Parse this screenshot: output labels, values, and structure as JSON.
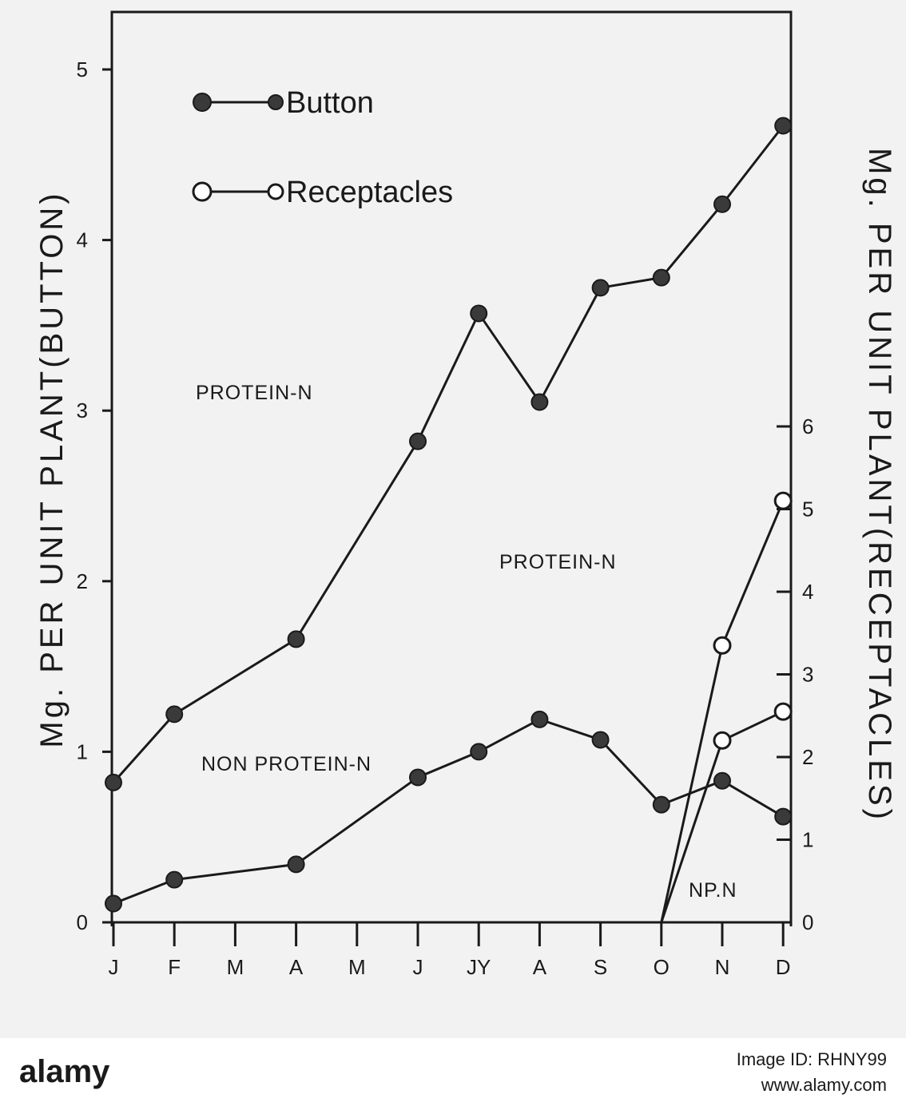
{
  "chart_data": {
    "type": "line",
    "categories": [
      "J",
      "F",
      "M",
      "A",
      "M",
      "J",
      "JY",
      "A",
      "S",
      "O",
      "N",
      "D"
    ],
    "left_axis": {
      "label": "Mg. PER UNIT PLANT(BUTTON)",
      "ylim": [
        0,
        5
      ],
      "ticks": [
        "0",
        "1",
        "2",
        "3",
        "4",
        "5"
      ]
    },
    "right_axis": {
      "label": "Mg. PER UNIT PLANT(RECEPTACLES)",
      "ylim": [
        0,
        6
      ],
      "ticks": [
        "0",
        "1",
        "2",
        "3",
        "4",
        "5",
        "6"
      ]
    },
    "series": [
      {
        "name": "Button",
        "marker": "filled",
        "axis": "left",
        "subset": "protein-n",
        "x": [
          "J",
          "F",
          "A",
          "J",
          "JY",
          "A",
          "S",
          "O",
          "N",
          "D"
        ],
        "values": [
          0.82,
          1.22,
          1.66,
          2.82,
          3.57,
          3.05,
          3.72,
          3.78,
          4.21,
          4.67
        ]
      },
      {
        "name": "Button",
        "marker": "filled",
        "axis": "left",
        "subset": "non-protein-n",
        "x": [
          "J",
          "F",
          "A",
          "J",
          "JY",
          "A",
          "S",
          "O",
          "N",
          "D"
        ],
        "values": [
          0.11,
          0.25,
          0.34,
          0.85,
          1.0,
          1.19,
          1.07,
          0.69,
          0.83,
          0.62
        ]
      },
      {
        "name": "Receptacles",
        "marker": "open",
        "axis": "right",
        "subset": "protein-n",
        "x": [
          "O",
          "N",
          "D"
        ],
        "values": [
          0,
          3.35,
          5.1
        ]
      },
      {
        "name": "Receptacles",
        "marker": "open",
        "axis": "right",
        "subset": "non-protein-n",
        "x": [
          "O",
          "N",
          "D"
        ],
        "values": [
          0,
          2.2,
          2.55
        ]
      }
    ],
    "annotations": [
      "PROTEIN-N",
      "PROTEIN-N",
      "NON PROTEIN-N",
      "NP.N"
    ],
    "legend": {
      "position": "top-left",
      "entries": [
        "Button",
        "Receptacles"
      ]
    },
    "grid": false
  },
  "footer": {
    "logo": "alamy",
    "image_id": "Image ID: RHNY99",
    "url": "www.alamy.com"
  }
}
